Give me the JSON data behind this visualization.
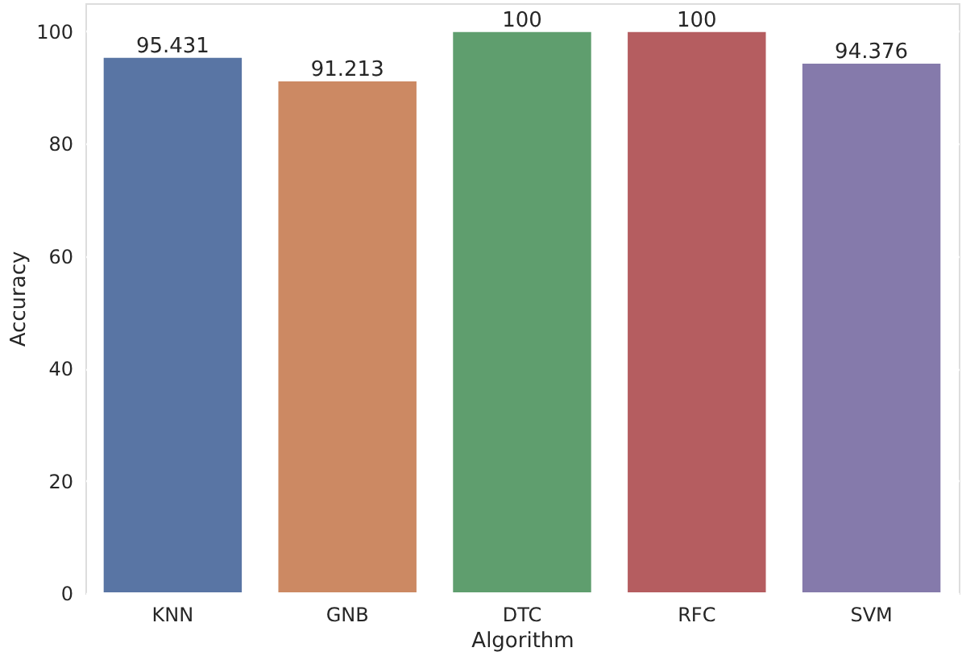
{
  "chart_data": {
    "type": "bar",
    "xlabel": "Algorithm",
    "ylabel": "Accuracy",
    "categories": [
      "KNN",
      "GNB",
      "DTC",
      "RFC",
      "SVM"
    ],
    "values": [
      95.431,
      91.213,
      100,
      100,
      94.376
    ],
    "colors": [
      "#5975a4",
      "#cc8963",
      "#5f9e6e",
      "#b55d60",
      "#857aab"
    ],
    "ylim": [
      0,
      105
    ],
    "yticks": [
      0,
      20,
      40,
      60,
      80,
      100
    ],
    "grid": "y",
    "data_labels": true
  }
}
